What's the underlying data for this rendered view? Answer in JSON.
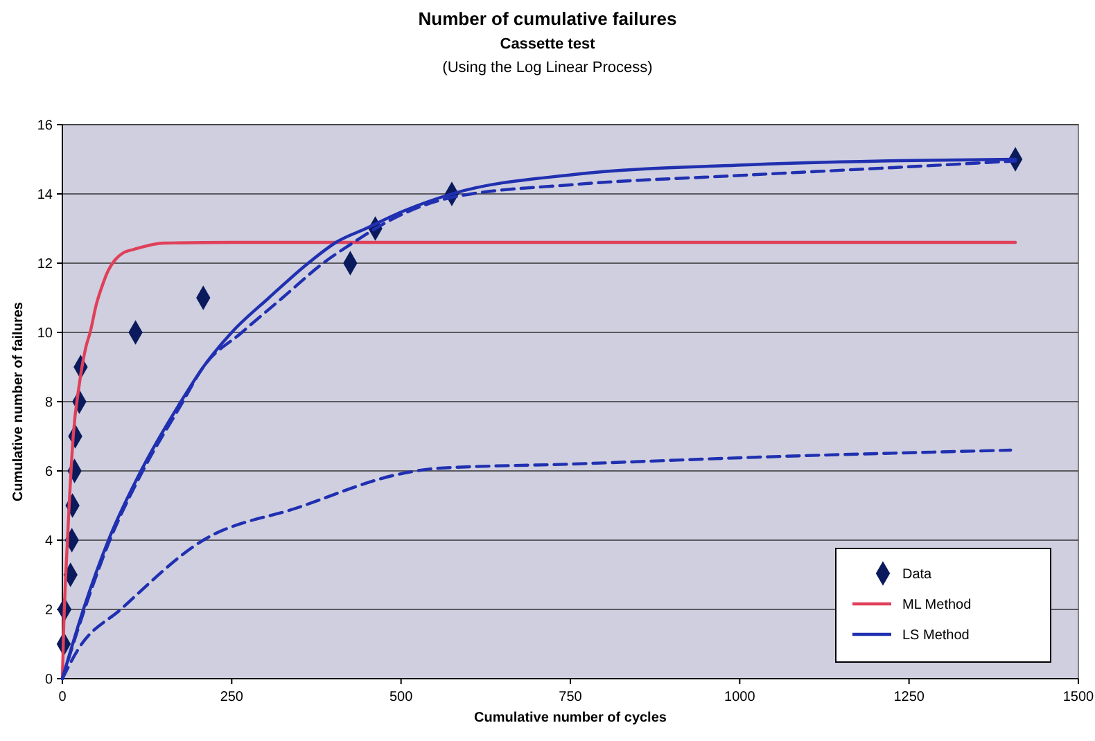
{
  "chart_data": {
    "type": "line",
    "title": "Number of cumulative failures",
    "subtitle": "Cassette test",
    "annotations": [
      "(Using the Log Linear Process)"
    ],
    "xlabel": "Cumulative number of cycles",
    "ylabel": "Cumulative number of failures",
    "xlim": [
      0,
      1500
    ],
    "xticks": [
      0,
      250,
      500,
      750,
      1000,
      1250,
      1500
    ],
    "ylim": [
      0,
      16
    ],
    "yticks": [
      0,
      2,
      4,
      6,
      8,
      10,
      12,
      14,
      16
    ],
    "grid": "y",
    "legend": "bottom right",
    "series": [
      {
        "name": "Data",
        "type": "scatter",
        "marker": "diamond",
        "color": "#0a1a5c",
        "x": [
          2,
          3,
          12,
          14,
          15,
          18,
          19,
          25,
          27,
          108,
          208,
          425,
          462,
          575,
          1407
        ],
        "values": [
          1,
          2,
          3,
          4,
          5,
          6,
          7,
          8,
          9,
          10,
          11,
          12,
          13,
          14,
          15
        ]
      },
      {
        "name": "ML Method",
        "line_style": "solid",
        "color": "#e0405a",
        "x": [
          0,
          2,
          5,
          10,
          16,
          25,
          35,
          41,
          50,
          58,
          68,
          78,
          90,
          106,
          150,
          250,
          1407
        ],
        "values": [
          0,
          1.5,
          3,
          5,
          7,
          8.5,
          9.6,
          10,
          10.8,
          11.3,
          11.8,
          12.1,
          12.3,
          12.4,
          12.58,
          12.6,
          12.6
        ]
      },
      {
        "name": "LS Method",
        "line_style": "solid",
        "color": "#2030b0",
        "x": [
          0,
          31,
          68,
          116,
          175,
          208,
          250,
          305,
          363,
          404,
          448,
          503,
          575,
          755,
          997,
          1236,
          1407
        ],
        "values": [
          0,
          2,
          4,
          6,
          8,
          9,
          10,
          11,
          12,
          12.6,
          13,
          13.5,
          14,
          14.56,
          14.83,
          14.96,
          15
        ]
      },
      {
        "line_style": "dashed",
        "color": "#2030b0",
        "x": [
          0,
          31,
          68,
          116,
          175,
          208,
          265,
          325,
          385,
          430,
          480,
          575,
          755,
          997,
          1236,
          1407
        ],
        "values": [
          0,
          1.9,
          3.9,
          5.9,
          7.9,
          9,
          10,
          11,
          12,
          12.6,
          13.2,
          13.9,
          14.27,
          14.53,
          14.77,
          14.95
        ]
      },
      {
        "line_style": "dashed",
        "color": "#2030b0",
        "x": [
          0,
          24,
          86,
          208,
          346,
          503,
          551,
          755,
          1031,
          1400
        ],
        "values": [
          0,
          0.87,
          2,
          4,
          4.93,
          5.93,
          6.07,
          6.2,
          6.4,
          6.6
        ]
      }
    ]
  }
}
